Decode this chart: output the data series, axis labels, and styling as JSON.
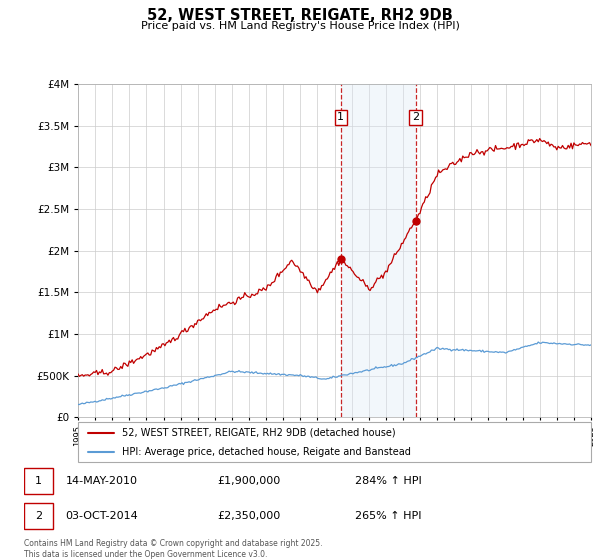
{
  "title": "52, WEST STREET, REIGATE, RH2 9DB",
  "subtitle": "Price paid vs. HM Land Registry's House Price Index (HPI)",
  "legend_line1": "52, WEST STREET, REIGATE, RH2 9DB (detached house)",
  "legend_line2": "HPI: Average price, detached house, Reigate and Banstead",
  "transaction1_date": "14-MAY-2010",
  "transaction1_price": "£1,900,000",
  "transaction1_hpi": "284% ↑ HPI",
  "transaction2_date": "03-OCT-2014",
  "transaction2_price": "£2,350,000",
  "transaction2_hpi": "265% ↑ HPI",
  "footer": "Contains HM Land Registry data © Crown copyright and database right 2025.\nThis data is licensed under the Open Government Licence v3.0.",
  "hpi_line_color": "#5b9bd5",
  "red_line_color": "#c00000",
  "shaded_region_color": "#dce9f5",
  "dashed_line_color": "#c00000",
  "ylim_min": 0,
  "ylim_max": 4000000,
  "year_start": 1995,
  "year_end": 2025,
  "transaction1_year": 2010.37,
  "transaction2_year": 2014.75,
  "transaction1_value_red": 1900000,
  "transaction2_value_red": 2350000,
  "transaction1_value_blue": 500000,
  "transaction2_value_blue": 650000
}
